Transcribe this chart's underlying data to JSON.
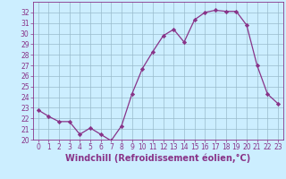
{
  "x": [
    0,
    1,
    2,
    3,
    4,
    5,
    6,
    7,
    8,
    9,
    10,
    11,
    12,
    13,
    14,
    15,
    16,
    17,
    18,
    19,
    20,
    21,
    22,
    23
  ],
  "y": [
    22.8,
    22.2,
    21.7,
    21.7,
    20.5,
    21.1,
    20.5,
    19.9,
    21.3,
    24.3,
    26.7,
    28.3,
    29.8,
    30.4,
    29.2,
    31.3,
    32.0,
    32.2,
    32.1,
    32.1,
    30.8,
    27.0,
    24.3,
    23.4
  ],
  "line_color": "#883388",
  "marker": "D",
  "marker_size": 2.2,
  "linewidth": 0.9,
  "xlabel": "Windchill (Refroidissement éolien,°C)",
  "xlabel_fontsize": 7,
  "ylim": [
    20,
    33
  ],
  "xlim": [
    -0.5,
    23.5
  ],
  "yticks": [
    20,
    21,
    22,
    23,
    24,
    25,
    26,
    27,
    28,
    29,
    30,
    31,
    32
  ],
  "xticks": [
    0,
    1,
    2,
    3,
    4,
    5,
    6,
    7,
    8,
    9,
    10,
    11,
    12,
    13,
    14,
    15,
    16,
    17,
    18,
    19,
    20,
    21,
    22,
    23
  ],
  "bg_color": "#cceeff",
  "grid_color": "#99bbcc",
  "tick_color": "#883388",
  "tick_fontsize": 5.5
}
